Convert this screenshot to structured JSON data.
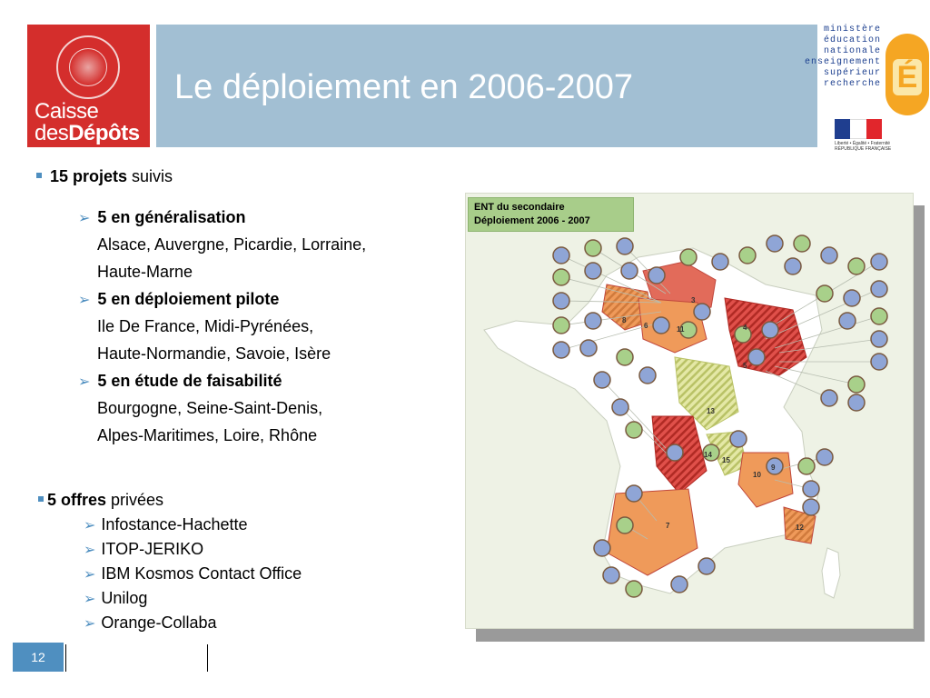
{
  "header": {
    "logo": {
      "line1": "Caisse",
      "line2_a": "des",
      "line2_b": "Dépôts"
    },
    "title": "Le déploiement en 2006-2007",
    "ministry": [
      "ministère",
      "éducation",
      "nationale",
      "enseignement",
      "supérieur",
      "recherche"
    ],
    "ministry_caption": [
      "Liberté • Égalité • Fraternité",
      "RÉPUBLIQUE FRANÇAISE"
    ]
  },
  "section1": {
    "lead_bold": "15 projets",
    "lead_rest": " suivis",
    "items": [
      {
        "title": "5 en généralisation",
        "lines": [
          "Alsace, Auvergne, Picardie, Lorraine,",
          "Haute-Marne"
        ]
      },
      {
        "title": "5 en déploiement pilote",
        "lines": [
          "Ile De France, Midi-Pyrénées,",
          "Haute-Normandie, Savoie, Isère"
        ]
      },
      {
        "title": "5 en étude de faisabilité",
        "lines": [
          "Bourgogne, Seine-Saint-Denis,",
          "Alpes-Maritimes, Loire, Rhône"
        ]
      }
    ]
  },
  "section2": {
    "lead_bold": "5 offres",
    "lead_rest": " privées",
    "items": [
      "Infostance-Hachette",
      "ITOP-JERIKO",
      "IBM Kosmos Contact Office",
      "Unilog",
      "Orange-Collaba"
    ]
  },
  "map": {
    "legend_line1": "ENT du secondaire",
    "legend_line2": "Déploiement 2006 - 2007",
    "region_labels": [
      "3",
      "6",
      "8",
      "11",
      "4",
      "5",
      "13",
      "14",
      "15",
      "10",
      "9",
      "7",
      "12"
    ],
    "colors": {
      "pilot": "#e0504a",
      "general": "#ef9a5a",
      "study": "#d8df86",
      "bubble": "#8fa5d6",
      "bubble_green": "#a8d08a"
    }
  },
  "footer": {
    "page_number": "12"
  }
}
